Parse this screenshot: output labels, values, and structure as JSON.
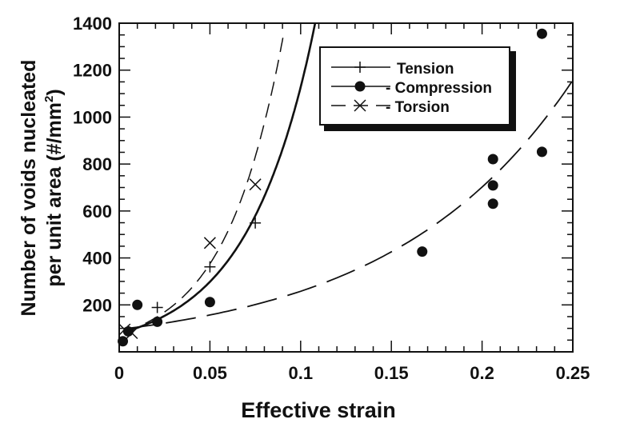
{
  "chart_data": {
    "type": "scatter",
    "xlabel": "Effective strain",
    "ylabel_line1": "Number of voids nucleated",
    "ylabel_line2": "per unit area (#/mm",
    "ylabel_sup": "2",
    "ylabel_close": ")",
    "xlim": [
      0,
      0.25
    ],
    "ylim": [
      0,
      1400
    ],
    "xticks": [
      "0",
      "0.05",
      "0.1",
      "0.15",
      "0.2",
      "0.25"
    ],
    "yticks": [
      "200",
      "400",
      "600",
      "800",
      "1000",
      "1200",
      "1400"
    ],
    "grid": false,
    "legend_position": "top-right",
    "series": [
      {
        "name": "Tension",
        "marker": "plus",
        "line": "solid",
        "points": [
          [
            0.005,
            90
          ],
          [
            0.021,
            189
          ],
          [
            0.05,
            362
          ],
          [
            0.075,
            549
          ]
        ],
        "curve": [
          [
            0.003,
            85
          ],
          [
            0.02,
            134
          ],
          [
            0.04,
            229
          ],
          [
            0.06,
            389
          ],
          [
            0.08,
            662
          ],
          [
            0.09,
            863
          ],
          [
            0.1,
            1127
          ],
          [
            0.108,
            1400
          ]
        ]
      },
      {
        "name": "Compression",
        "marker": "circle",
        "line": "long-dash",
        "points": [
          [
            0.002,
            45
          ],
          [
            0.005,
            87
          ],
          [
            0.01,
            200
          ],
          [
            0.021,
            128
          ],
          [
            0.05,
            212
          ],
          [
            0.167,
            427
          ],
          [
            0.206,
            821
          ],
          [
            0.206,
            709
          ],
          [
            0.206,
            631
          ],
          [
            0.233,
            1355
          ],
          [
            0.233,
            852
          ]
        ],
        "curve": [
          [
            0.003,
            98
          ],
          [
            0.05,
            157
          ],
          [
            0.1,
            258
          ],
          [
            0.15,
            426
          ],
          [
            0.2,
            702
          ],
          [
            0.25,
            1157
          ]
        ]
      },
      {
        "name": "Torsion",
        "marker": "cross",
        "line": "dash",
        "points": [
          [
            0.003,
            95
          ],
          [
            0.007,
            80
          ],
          [
            0.05,
            464
          ],
          [
            0.075,
            713
          ]
        ],
        "curve": [
          [
            0.003,
            84
          ],
          [
            0.02,
            145
          ],
          [
            0.04,
            273
          ],
          [
            0.06,
            515
          ],
          [
            0.07,
            709
          ],
          [
            0.08,
            975
          ],
          [
            0.091,
            1370
          ]
        ]
      }
    ],
    "legend_labels": [
      "Tension",
      "- Compression",
      "- Torsion"
    ]
  }
}
